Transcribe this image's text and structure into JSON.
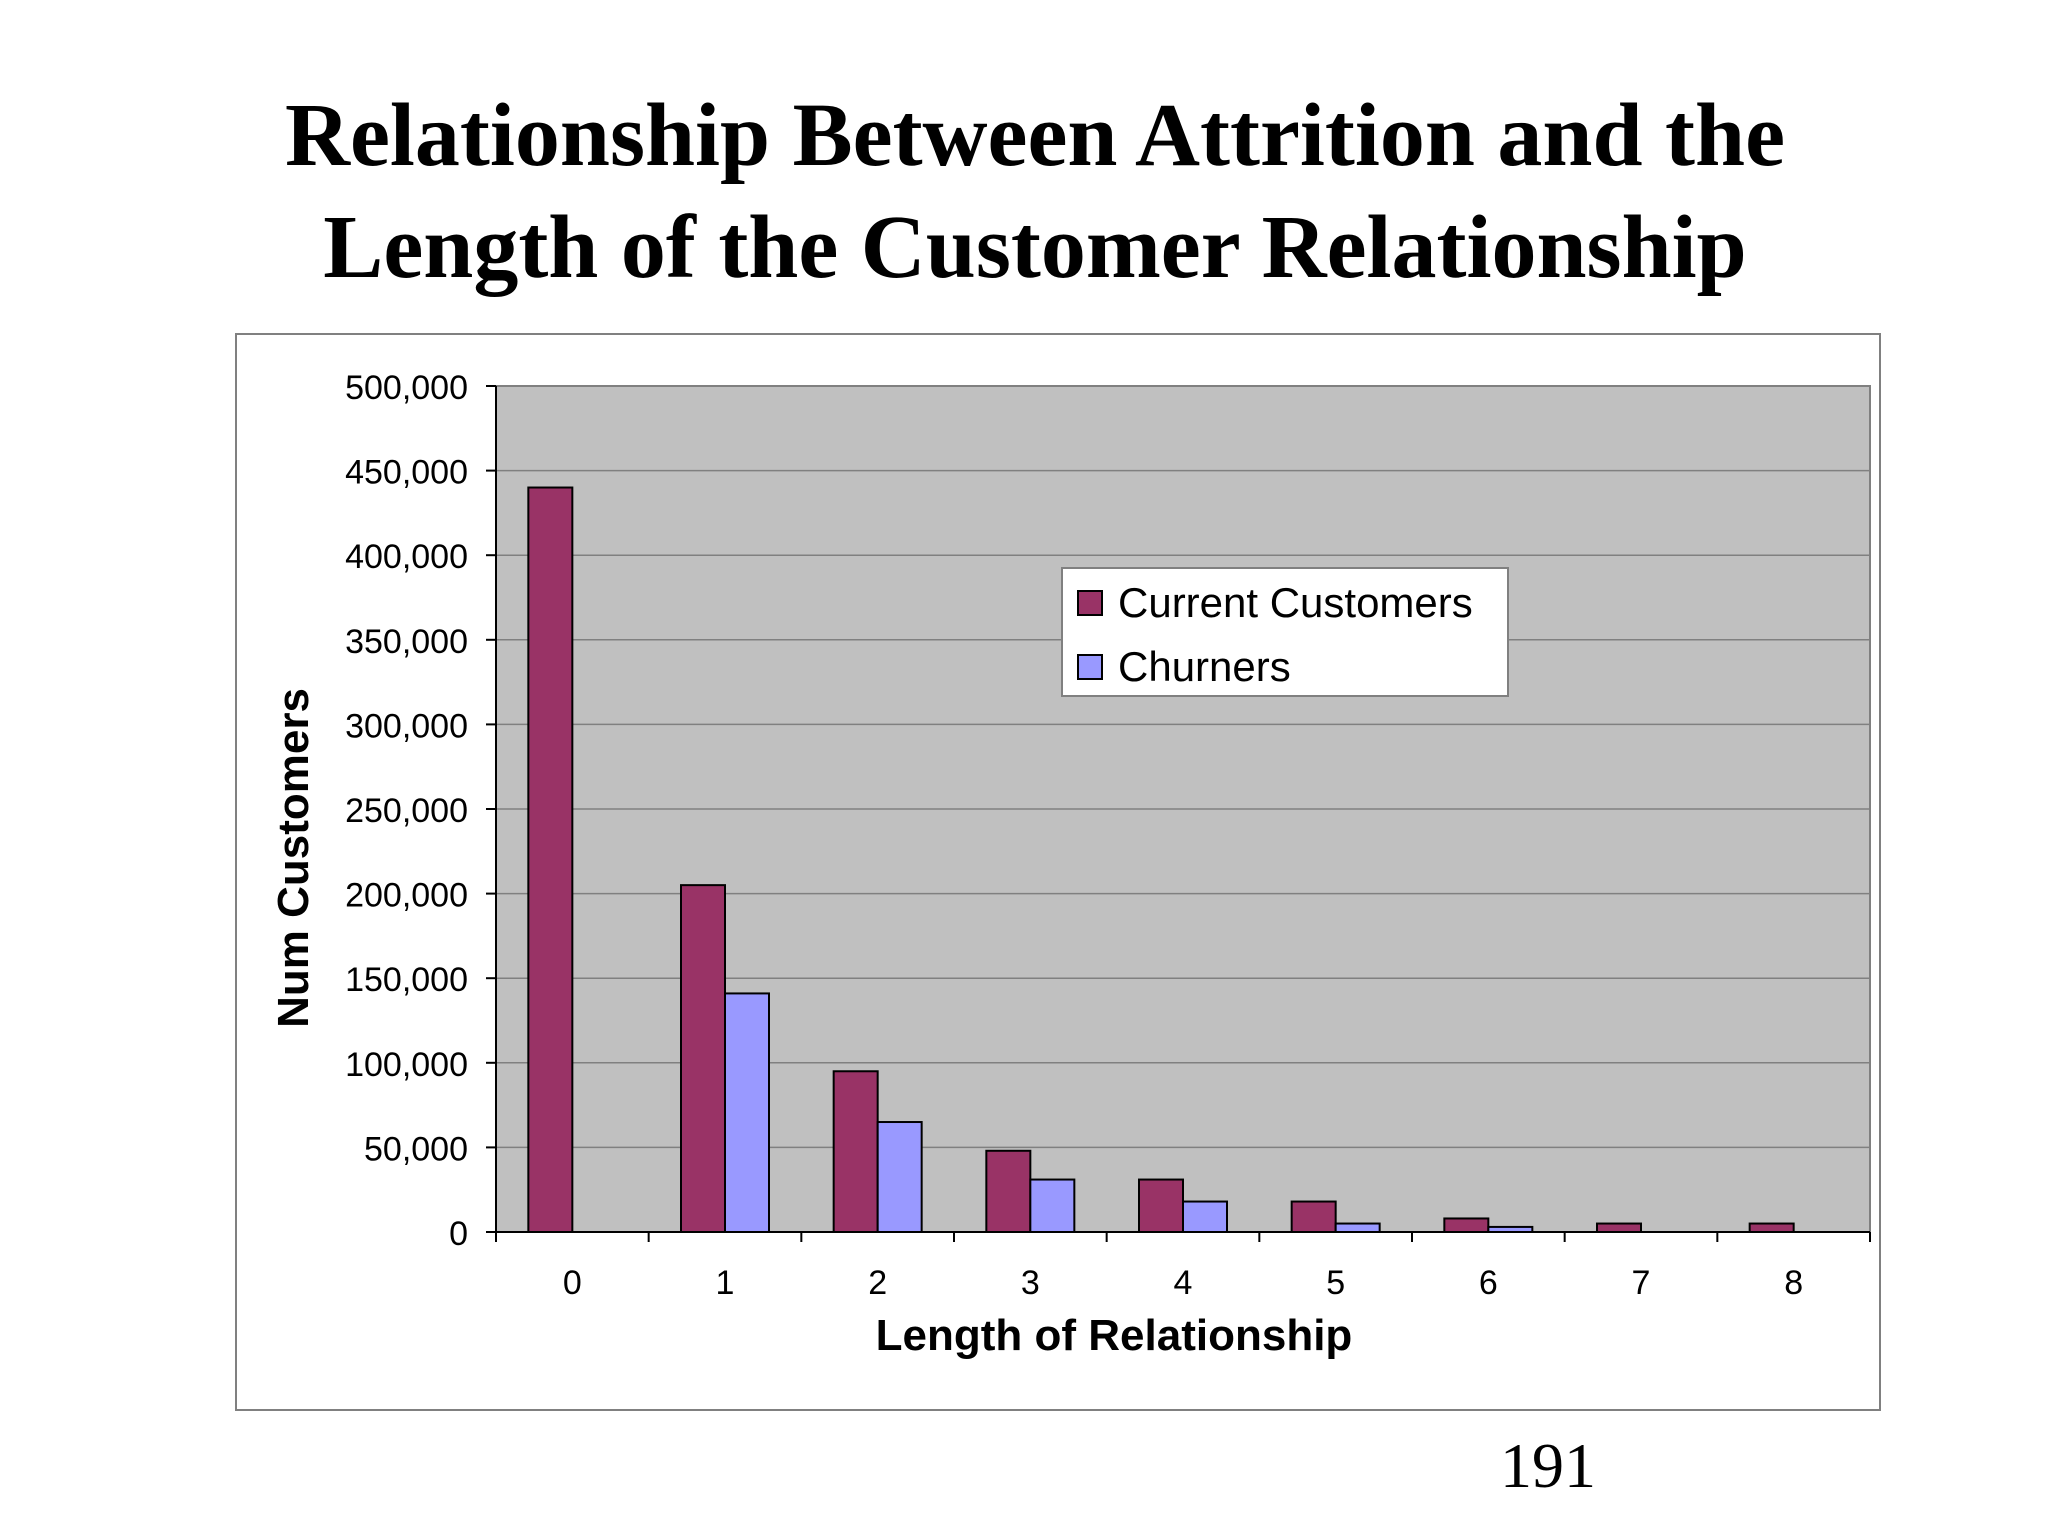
{
  "slide": {
    "title_line1": "Relationship Between Attrition and the",
    "title_line2": "Length of the Customer Relationship",
    "page_number": "191"
  },
  "colors": {
    "current_customers": "#993366",
    "churners": "#9999FF",
    "plot_background": "#C0C0C0",
    "gridline": "#808080",
    "bar_outline": "#000000"
  },
  "chart_data": {
    "type": "bar",
    "title": "",
    "xlabel": "Length of Relationship",
    "ylabel": "Num Customers",
    "categories": [
      "0",
      "1",
      "2",
      "3",
      "4",
      "5",
      "6",
      "7",
      "8"
    ],
    "series": [
      {
        "name": "Current Customers",
        "values": [
          440000,
          205000,
          95000,
          48000,
          31000,
          18000,
          8000,
          5000,
          5000
        ]
      },
      {
        "name": "Churners",
        "values": [
          0,
          141000,
          65000,
          31000,
          18000,
          5000,
          3000,
          0,
          0
        ]
      }
    ],
    "ylim": [
      0,
      500000
    ],
    "yticks": [
      0,
      50000,
      100000,
      150000,
      200000,
      250000,
      300000,
      350000,
      400000,
      450000,
      500000
    ],
    "ytick_labels": [
      "0",
      "50,000",
      "100,000",
      "150,000",
      "200,000",
      "250,000",
      "300,000",
      "350,000",
      "400,000",
      "450,000",
      "500,000"
    ],
    "grid": true,
    "legend_position": "upper-middle-right"
  }
}
